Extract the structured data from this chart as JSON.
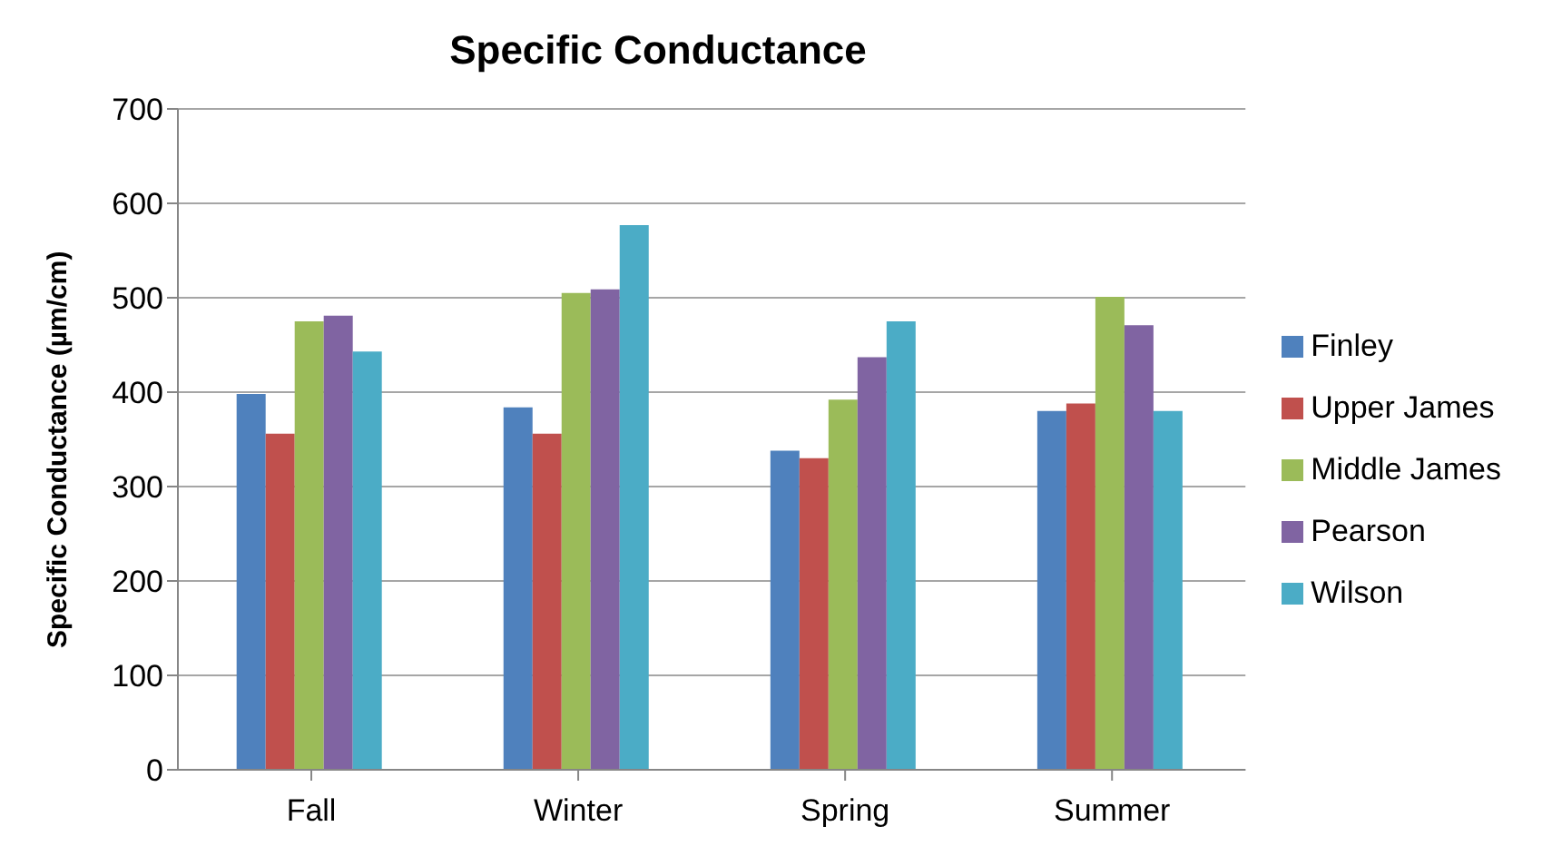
{
  "chart_data": {
    "type": "bar",
    "title": "Specific Conductance",
    "ylabel": "Specific Conductance  (µm/cm)",
    "categories": [
      "Fall",
      "Winter",
      "Spring",
      "Summer"
    ],
    "series": [
      {
        "name": "Finley",
        "color": "#4f81bd",
        "values": [
          398,
          384,
          338,
          380
        ]
      },
      {
        "name": "Upper James",
        "color": "#c0504d",
        "values": [
          356,
          356,
          330,
          388
        ]
      },
      {
        "name": "Middle James",
        "color": "#9bbb59",
        "values": [
          475,
          505,
          392,
          501
        ]
      },
      {
        "name": "Pearson",
        "color": "#8064a2",
        "values": [
          481,
          509,
          437,
          471
        ]
      },
      {
        "name": "Wilson",
        "color": "#4bacc6",
        "values": [
          443,
          577,
          475,
          380
        ]
      }
    ],
    "ylim": [
      0,
      700
    ],
    "yticks": [
      0,
      100,
      200,
      300,
      400,
      500,
      600,
      700
    ],
    "grid": "y",
    "legend": "right"
  }
}
